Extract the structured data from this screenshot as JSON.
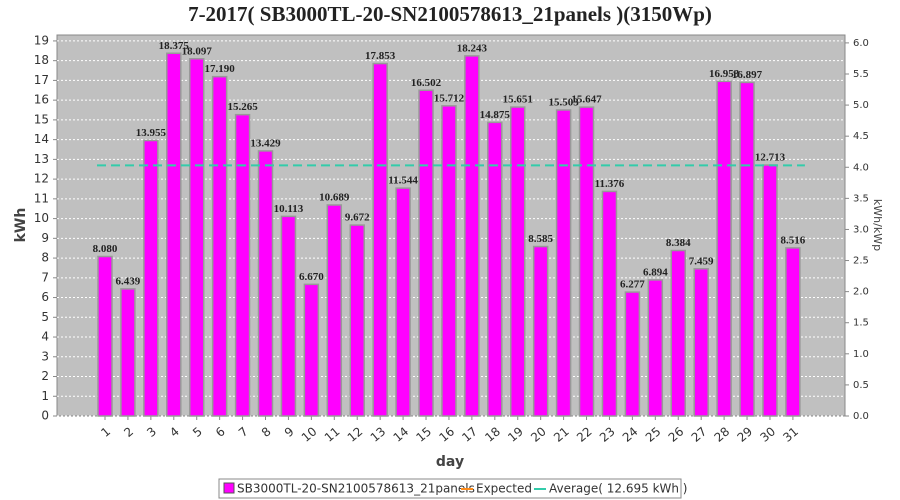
{
  "chart_data": {
    "type": "bar",
    "title": "7-2017( SB3000TL-20-SN2100578613_21panels )(3150Wp)",
    "x_label": "day",
    "y_label": "kWh",
    "y2_label": "kWh/kWp",
    "categories": [
      "1",
      "2",
      "3",
      "4",
      "5",
      "6",
      "7",
      "8",
      "9",
      "10",
      "11",
      "12",
      "13",
      "14",
      "15",
      "16",
      "17",
      "18",
      "19",
      "20",
      "21",
      "22",
      "23",
      "24",
      "25",
      "26",
      "27",
      "28",
      "29",
      "30",
      "31"
    ],
    "series": [
      {
        "name": "SB3000TL-20-SN2100578613_21panels",
        "color": "#ff00ff",
        "values": [
          8.08,
          6.439,
          13.955,
          18.375,
          18.097,
          17.19,
          15.265,
          13.429,
          10.113,
          6.67,
          10.689,
          9.672,
          17.853,
          11.544,
          16.502,
          15.712,
          18.243,
          14.875,
          15.651,
          8.585,
          15.503,
          15.647,
          11.376,
          6.277,
          6.894,
          8.384,
          7.459,
          16.953,
          16.897,
          12.713,
          8.516
        ],
        "value_labels": [
          "8.080",
          "6.439",
          "13.955",
          "18.375",
          "18.097",
          "17.190",
          "15.265",
          "13.429",
          "10.113",
          "6.670",
          "10.689",
          "9.672",
          "17.853",
          "11.544",
          "16.502",
          "15.712",
          "18.243",
          "14.875",
          "15.651",
          "8.585",
          "15.503",
          "15.647",
          "11.376",
          "6.277",
          "6.894",
          "8.384",
          "7.459",
          "16.953",
          "16.897",
          "12.713",
          "8.516"
        ]
      }
    ],
    "lines": [
      {
        "name": "Expected",
        "color": "#ff8c1a"
      },
      {
        "name": "Average( 12.695 kWh )",
        "color": "#33ccaa",
        "value": 12.695
      }
    ],
    "ylim": [
      0,
      19.3
    ],
    "yticks": [
      0,
      1,
      2,
      3,
      4,
      5,
      6,
      7,
      8,
      9,
      10,
      11,
      12,
      13,
      14,
      15,
      16,
      17,
      18,
      19
    ],
    "y2lim": [
      0,
      6.127
    ],
    "y2ticks": [
      {
        "value": 0,
        "label": "0.0"
      },
      0.5,
      {
        "value": 1,
        "label": "1.0"
      },
      1.5,
      {
        "value": 2,
        "label": "2.0"
      },
      2.5,
      {
        "value": 3,
        "label": "3.0"
      },
      3.5,
      {
        "value": 4,
        "label": "4.0"
      },
      4.5,
      {
        "value": 5,
        "label": "5.0"
      },
      5.5,
      {
        "value": 6,
        "label": "6.0"
      }
    ],
    "grid": true
  }
}
